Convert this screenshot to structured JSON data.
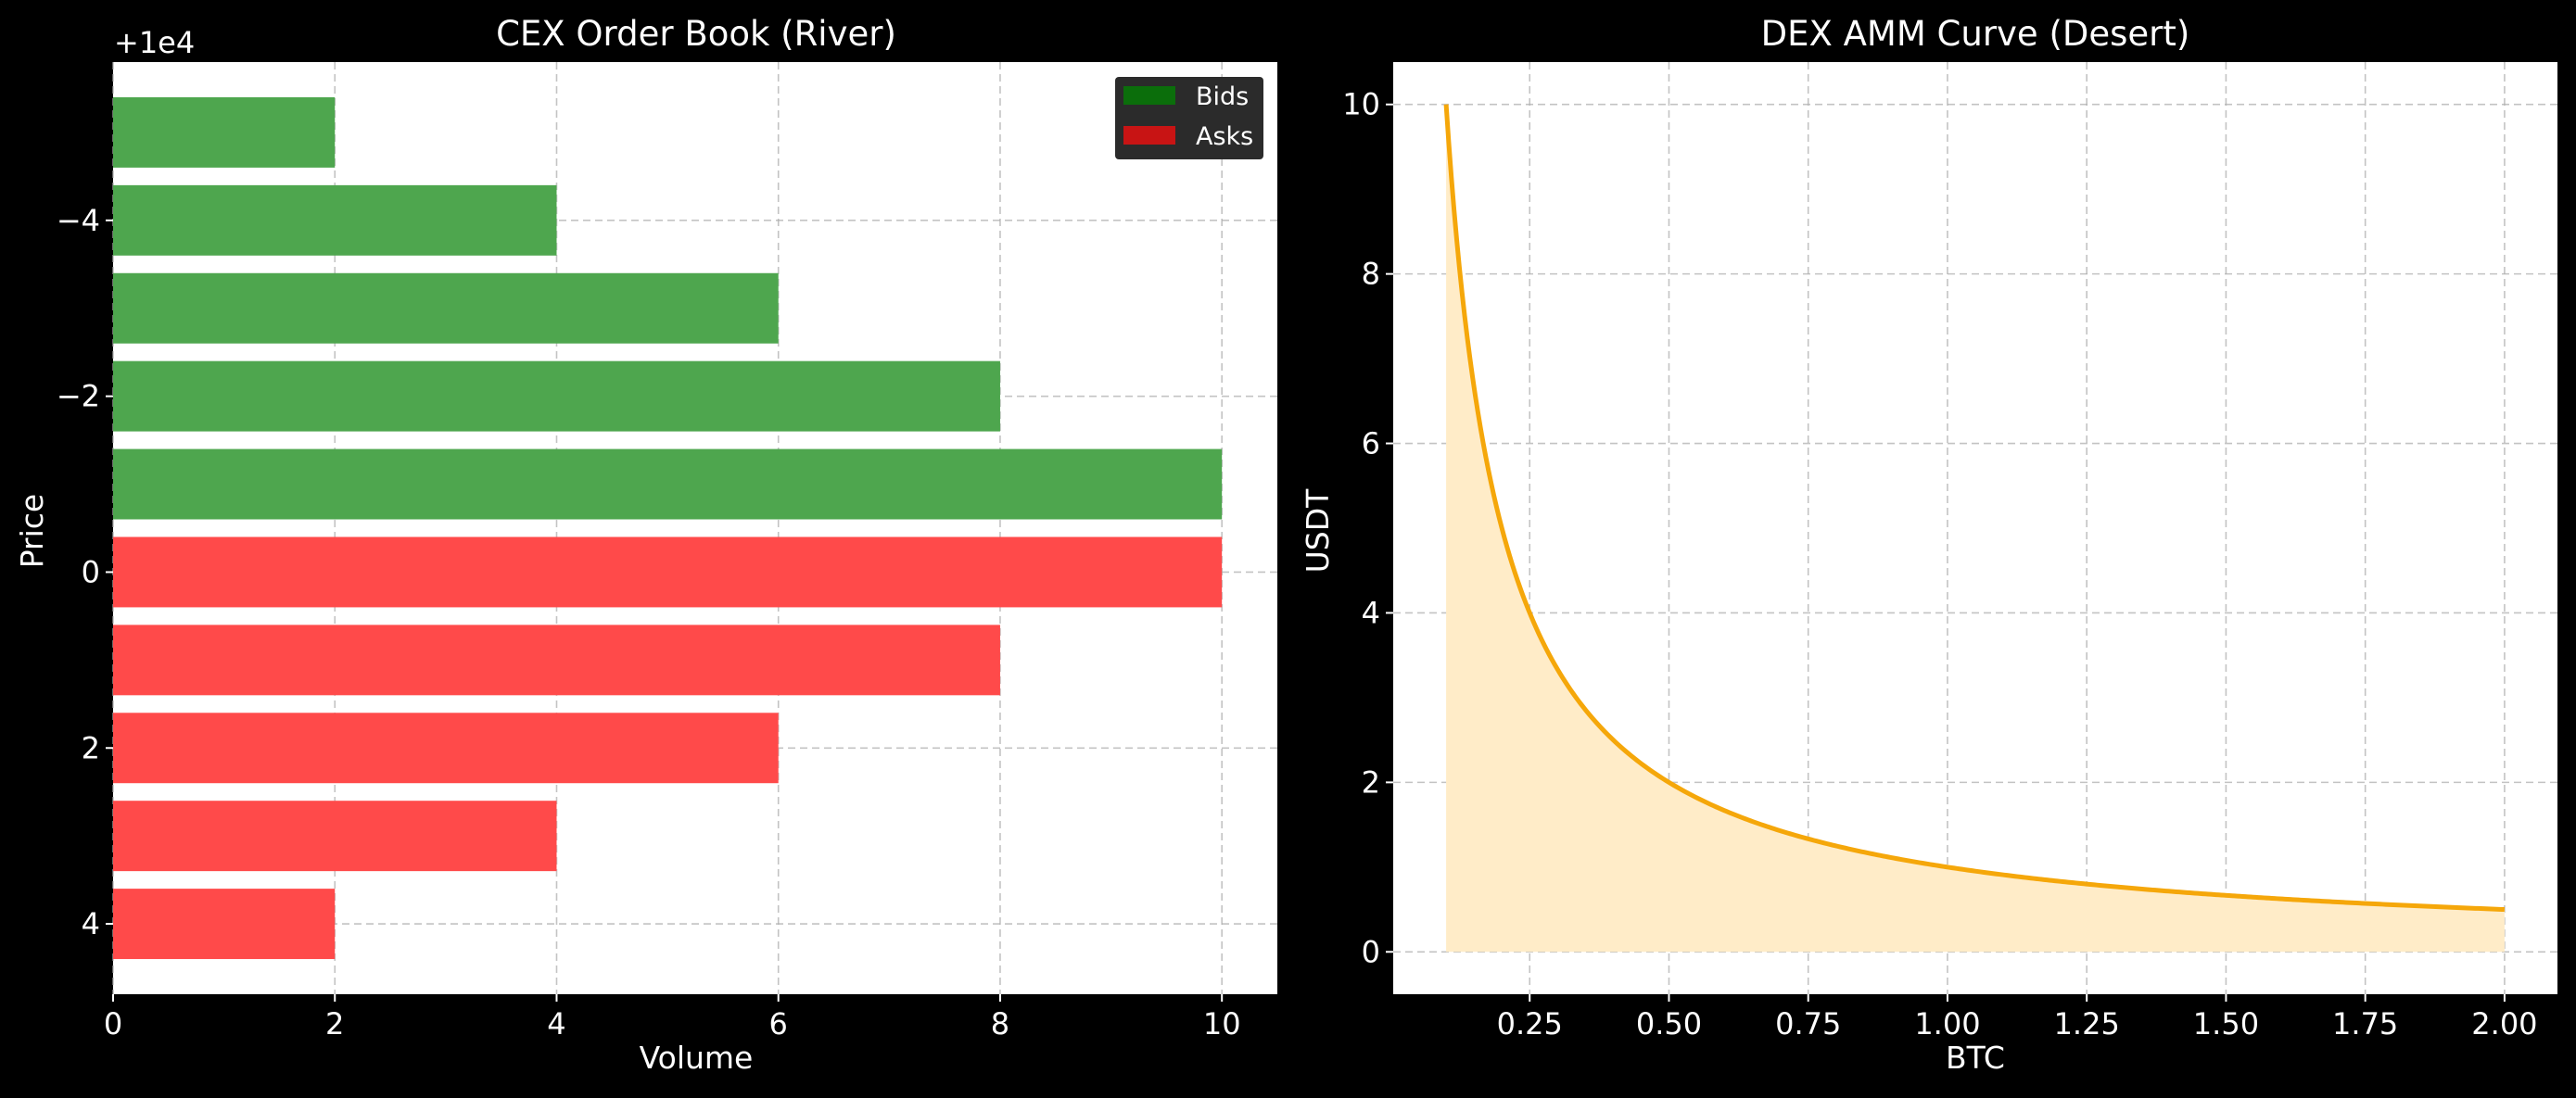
{
  "charts": [
    {
      "title": "CEX Order Book (River)",
      "xlabel": "Volume",
      "ylabel": "Price",
      "offset_label": "+1e4",
      "legend": [
        {
          "name": "Bids",
          "color": "#0b6e0b"
        },
        {
          "name": "Asks",
          "color": "#c81414"
        }
      ]
    },
    {
      "title": "DEX AMM Curve (Desert)",
      "xlabel": "BTC",
      "ylabel": "USDT"
    }
  ],
  "chart_data": [
    {
      "type": "bar",
      "orientation": "horizontal",
      "title": "CEX Order Book (River)",
      "xlabel": "Volume",
      "ylabel": "Price",
      "y_offset": 10000,
      "xlim": [
        0,
        10.5
      ],
      "ylim": [
        4.8,
        -5.8
      ],
      "xticks": [
        0,
        2,
        4,
        6,
        8,
        10
      ],
      "yticks": [
        -4,
        -2,
        0,
        2,
        4
      ],
      "grid": true,
      "legend_position": "top-right",
      "bar_height": 0.8,
      "series": [
        {
          "name": "Bids",
          "color": "#4ea64e",
          "prices": [
            9995,
            9996,
            9997,
            9998,
            9999
          ],
          "values": [
            2,
            4,
            6,
            8,
            10
          ]
        },
        {
          "name": "Asks",
          "color": "#ff4a4a",
          "prices": [
            10000,
            10001,
            10002,
            10003,
            10004
          ],
          "values": [
            10,
            8,
            6,
            4,
            2
          ]
        }
      ]
    },
    {
      "type": "area",
      "title": "DEX AMM Curve (Desert)",
      "xlabel": "BTC",
      "ylabel": "USDT",
      "function": "y = 1 / x",
      "x_range": [
        0.1,
        2.0
      ],
      "xlim": [
        0.005,
        2.095
      ],
      "ylim": [
        -0.5,
        10.5
      ],
      "xticks": [
        0.25,
        0.5,
        0.75,
        1.0,
        1.25,
        1.5,
        1.75,
        2.0
      ],
      "xtick_labels": [
        "0.25",
        "0.50",
        "0.75",
        "1.00",
        "1.25",
        "1.50",
        "1.75",
        "2.00"
      ],
      "yticks": [
        0,
        2,
        4,
        6,
        8,
        10
      ],
      "grid": true,
      "line_color": "#f5a70a",
      "fill_color": "#ffecc8"
    }
  ]
}
